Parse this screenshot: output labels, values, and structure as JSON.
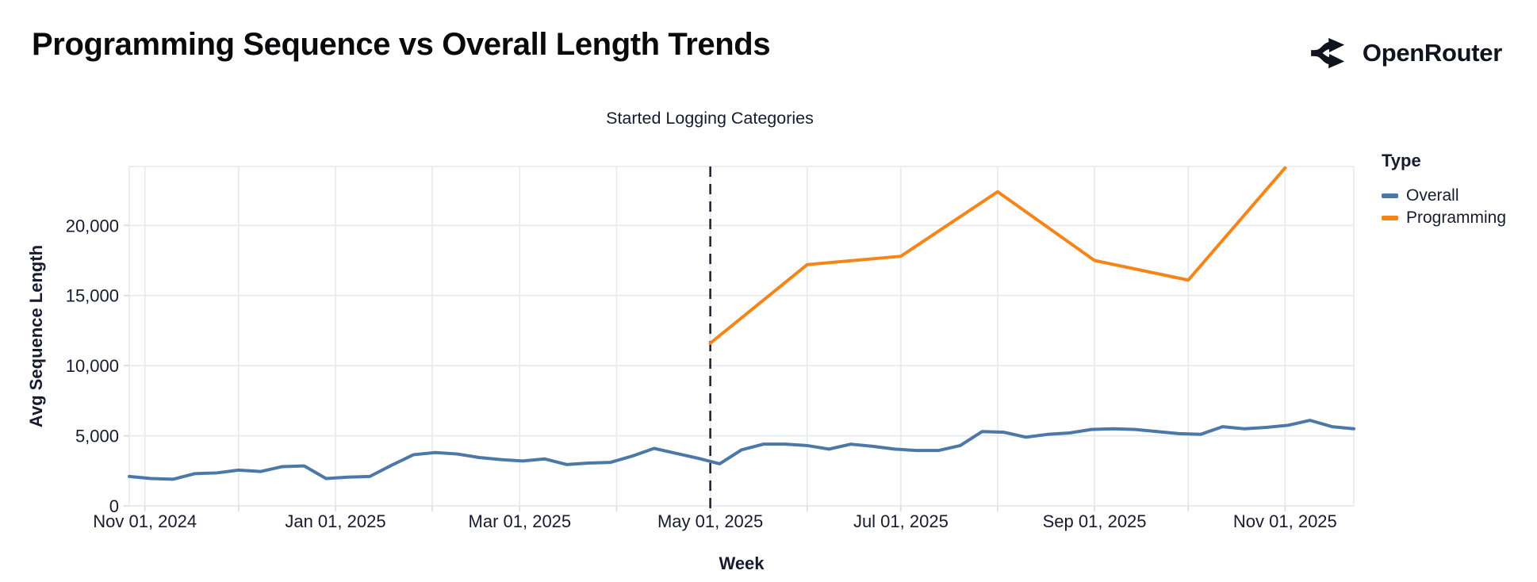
{
  "header": {
    "title": "Programming Sequence vs Overall Length Trends",
    "brand": "OpenRouter"
  },
  "colors": {
    "overall_line": "#4c78a8",
    "programming_line": "#f58518",
    "gridline": "#e7e9f1",
    "tick": "#d6dae4",
    "text": "#171b2f",
    "annotation_rule": "#1a1f33",
    "background": "#ffffff"
  },
  "chart_data": {
    "type": "line",
    "title": "Programming Sequence vs Overall Length Trends",
    "xlabel": "Week",
    "ylabel": "Avg Sequence Length",
    "grid": true,
    "legend_position": "right",
    "x_domain": [
      "2024-10-27",
      "2025-11-23"
    ],
    "y_max": 24200,
    "ylim": [
      0,
      24200
    ],
    "y_ticks": [
      0,
      5000,
      10000,
      15000,
      20000
    ],
    "y_tick_labels": [
      "0",
      "5,000",
      "10,000",
      "15,000",
      "20,000"
    ],
    "month_gridlines": [
      "2024-11-01",
      "2024-12-01",
      "2025-01-01",
      "2025-02-01",
      "2025-03-01",
      "2025-04-01",
      "2025-05-01",
      "2025-06-01",
      "2025-07-01",
      "2025-08-01",
      "2025-09-01",
      "2025-10-01",
      "2025-11-01"
    ],
    "x_tick_labels": [
      {
        "date": "2024-11-01",
        "label": "Nov 01, 2024"
      },
      {
        "date": "2025-01-01",
        "label": "Jan 01, 2025"
      },
      {
        "date": "2025-03-01",
        "label": "Mar 01, 2025"
      },
      {
        "date": "2025-05-01",
        "label": "May 01, 2025"
      },
      {
        "date": "2025-07-01",
        "label": "Jul 01, 2025"
      },
      {
        "date": "2025-09-01",
        "label": "Sep 01, 2025"
      },
      {
        "date": "2025-11-01",
        "label": "Nov 01, 2025"
      }
    ],
    "annotation": {
      "date": "2025-05-01",
      "label": "Started Logging Categories"
    },
    "legend": {
      "title": "Type",
      "items": [
        {
          "label": "Overall",
          "color": "#4c78a8"
        },
        {
          "label": "Programming",
          "color": "#f58518"
        }
      ]
    },
    "series": [
      {
        "name": "Overall",
        "color": "#4c78a8",
        "cadence": "weekly",
        "start": "2024-10-27",
        "interval_days": 7,
        "values": [
          2100,
          1950,
          1900,
          2300,
          2350,
          2550,
          2450,
          2800,
          2850,
          1950,
          2050,
          2100,
          2900,
          3650,
          3800,
          3700,
          3450,
          3300,
          3200,
          3350,
          2950,
          3050,
          3100,
          3550,
          4100,
          3750,
          3400,
          3000,
          4000,
          4400,
          4400,
          4300,
          4050,
          4400,
          4250,
          4050,
          3950,
          3950,
          4300,
          5300,
          5250,
          4900,
          5100,
          5200,
          5450,
          5500,
          5450,
          5300,
          5150,
          5100,
          5650,
          5500,
          5600,
          5750,
          6100,
          5650,
          5500
        ]
      },
      {
        "name": "Programming",
        "color": "#f58518",
        "cadence": "monthly",
        "dates": [
          "2025-05-01",
          "2025-06-01",
          "2025-07-01",
          "2025-08-01",
          "2025-09-01",
          "2025-10-01",
          "2025-11-01"
        ],
        "values": [
          11600,
          17200,
          17800,
          22400,
          17500,
          16100,
          24100
        ]
      }
    ]
  }
}
